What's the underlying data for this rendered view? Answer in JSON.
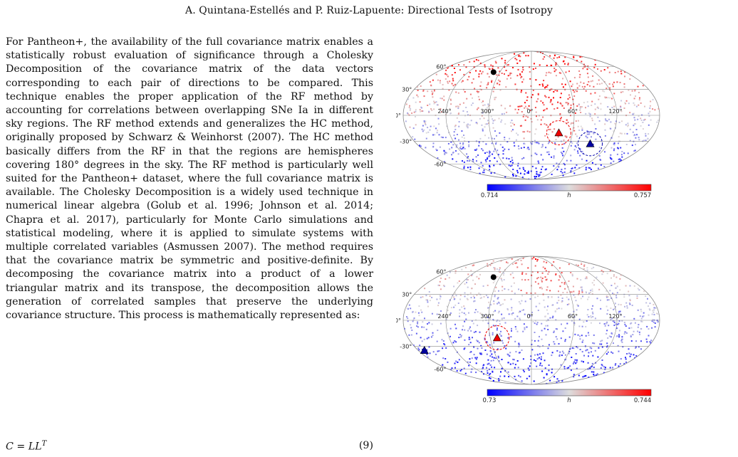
{
  "running_header": "A. Quintana-Estellés and P. Ruiz-Lapuente: Directional Tests of Isotropy",
  "paragraph": "For Pantheon+, the availability of the full covariance matrix enables a statistically robust evaluation of significance through a Cholesky Decomposition of the covariance matrix of the data vectors corresponding to each pair of directions to be compared. This technique enables the proper application of the RF method by accounting for correlations between overlapping SNe Ia in different sky regions. The RF method extends and generalizes the HC method, originally proposed by Schwarz & Weinhorst (2007). The HC method basically differs from the RF in that the regions are hemispheres covering 180° degrees in the sky. The RF method is particularly well suited for the Pantheon+ dataset, where the full covariance matrix is available. The Cholesky Decomposition is a widely used technique in numerical linear algebra (Golub et al. 1996; Johnson et al. 2014; Chapra et al. 2017), particularly for Monte Carlo simulations and statistical modeling, where it is applied to simulate systems with multiple correlated variables (Asmussen 2007). The method requires that the covariance matrix be symmetric and positive-definite. By decomposing the covariance matrix into a product of a lower triangular matrix and its transpose, the decomposition allows the generation of correlated samples that preserve the underlying covariance structure. This process is mathematically represented as:",
  "equation": {
    "text": "C = LL",
    "superscript": "T",
    "number": "(9)"
  },
  "figures": [
    {
      "lat_labels": [
        "60°",
        "30°",
        "0°",
        "-30°",
        "-60°"
      ],
      "lon_labels": [
        "240°",
        "300°",
        "0°",
        "60°",
        "120°"
      ],
      "colorbar": {
        "min": "0.714",
        "max": "0.757",
        "label": "h",
        "low_color": "#0000ff",
        "mid_color": "#dddddd",
        "high_color": "#ff0000"
      },
      "markers": {
        "black_dot": {
          "lon": -72,
          "lat": 52
        },
        "red_triangle": {
          "lon": 40,
          "lat": -20
        },
        "blue_triangle": {
          "lon": 92,
          "lat": -33
        }
      }
    },
    {
      "lat_labels": [
        "60°",
        "30°",
        "0°",
        "-30°",
        "-60°"
      ],
      "lon_labels": [
        "240°",
        "300°",
        "0°",
        "60°",
        "120°"
      ],
      "colorbar": {
        "min": "0.73",
        "max": "0.744",
        "label": "h",
        "low_color": "#0000ff",
        "mid_color": "#dddddd",
        "high_color": "#ff0000"
      },
      "markers": {
        "black_dot": {
          "lon": -72,
          "lat": 52
        },
        "red_triangle": {
          "lon": -50,
          "lat": -20
        },
        "blue_triangle": {
          "lon": -170,
          "lat": -35
        }
      }
    }
  ]
}
